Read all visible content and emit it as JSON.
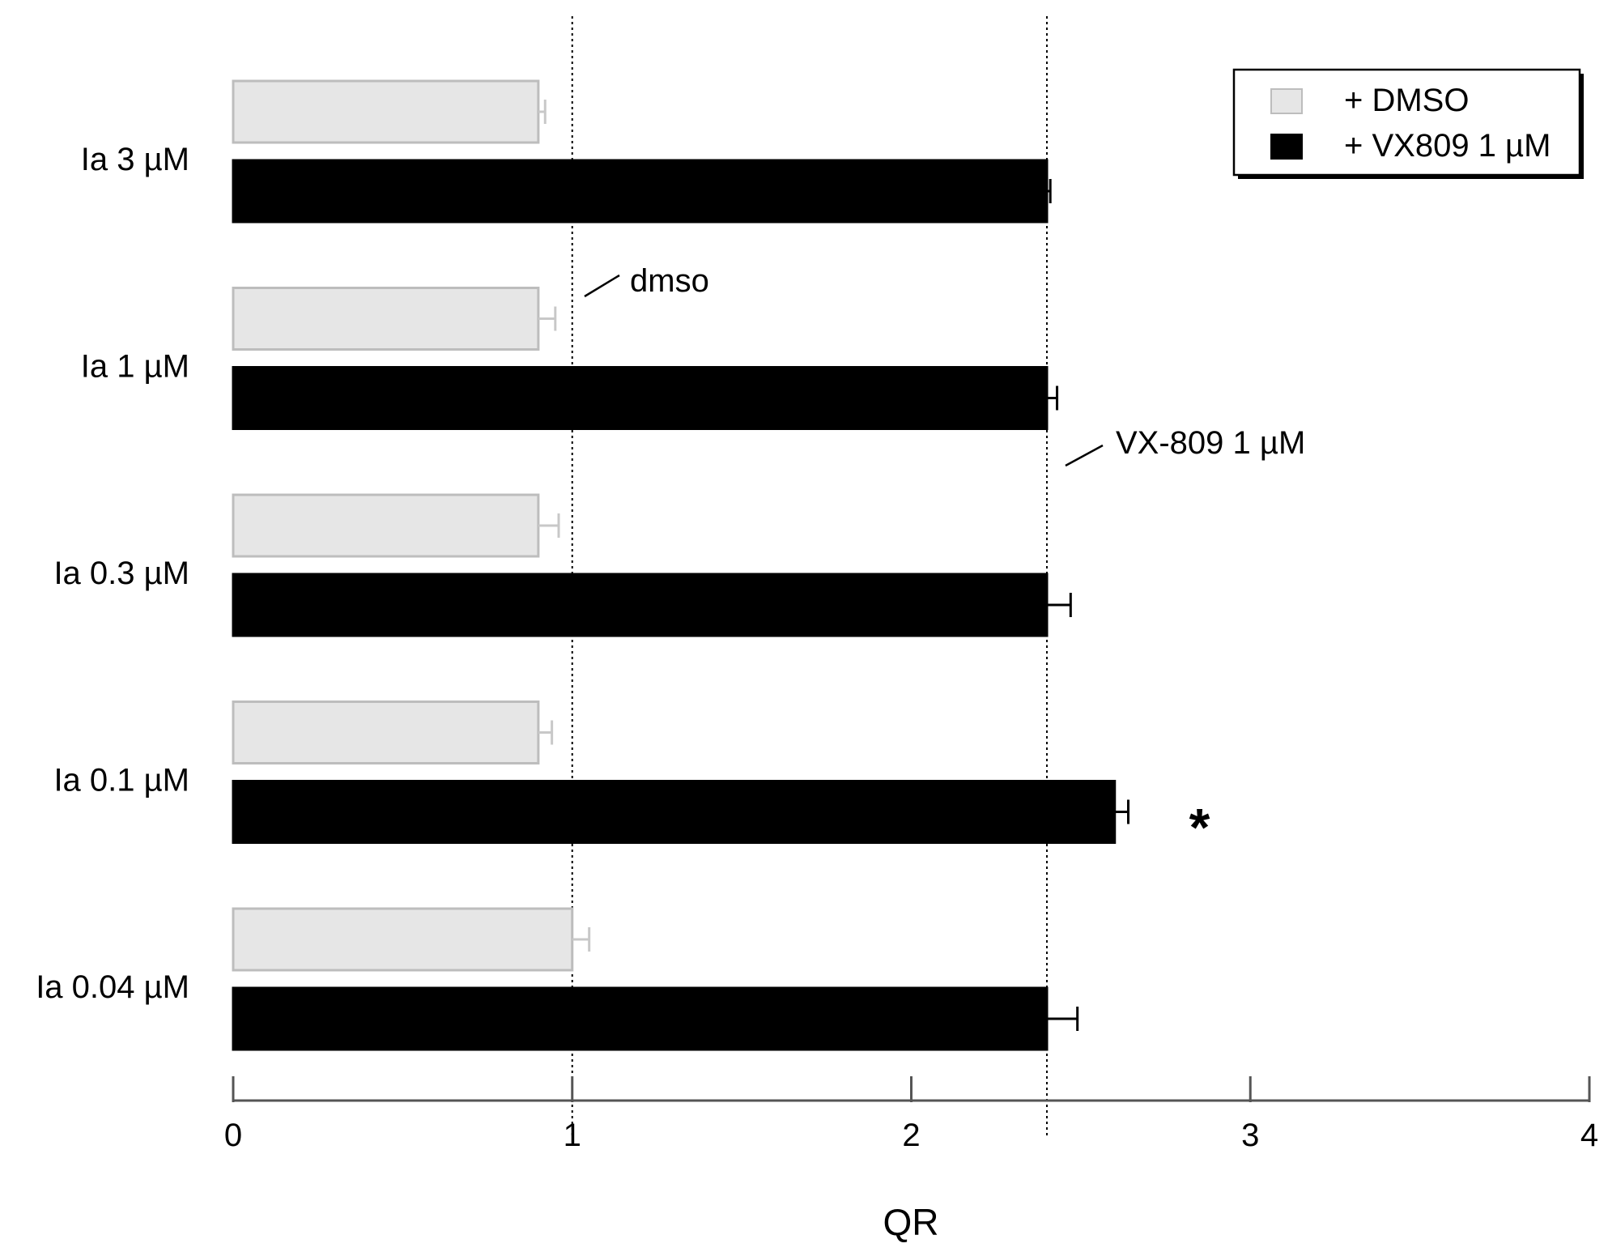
{
  "chart_data": {
    "type": "bar",
    "orientation": "horizontal",
    "categories": [
      "Ia 3 µM",
      "Ia 1 µM",
      "Ia 0.3 µM",
      "Ia 0.1 µM",
      "Ia 0.04 µM"
    ],
    "series": [
      {
        "name": "+ DMSO",
        "color": "#e6e6e6",
        "stroke": "#bdbdbd",
        "values": [
          0.9,
          0.9,
          0.9,
          0.9,
          1.0
        ],
        "errors": [
          0.02,
          0.05,
          0.06,
          0.04,
          0.05
        ]
      },
      {
        "name": "+ VX809 1 µM",
        "color": "#000000",
        "stroke": "#000000",
        "values": [
          2.4,
          2.4,
          2.4,
          2.6,
          2.4
        ],
        "errors": [
          0.01,
          0.03,
          0.07,
          0.04,
          0.09
        ]
      }
    ],
    "xlabel": "QR",
    "xlim": [
      0,
      4
    ],
    "xticks": [
      "0",
      "1",
      "2",
      "3",
      "4"
    ],
    "grid": false,
    "legend_position": "top-right",
    "reference_lines": [
      {
        "x": 1.0,
        "label": "dmso",
        "style": "dotted"
      },
      {
        "x": 2.4,
        "label": "VX-809 1 µM",
        "style": "dotted"
      }
    ],
    "significance": [
      {
        "category_index": 3,
        "series_index": 1,
        "mark": "*"
      }
    ]
  }
}
